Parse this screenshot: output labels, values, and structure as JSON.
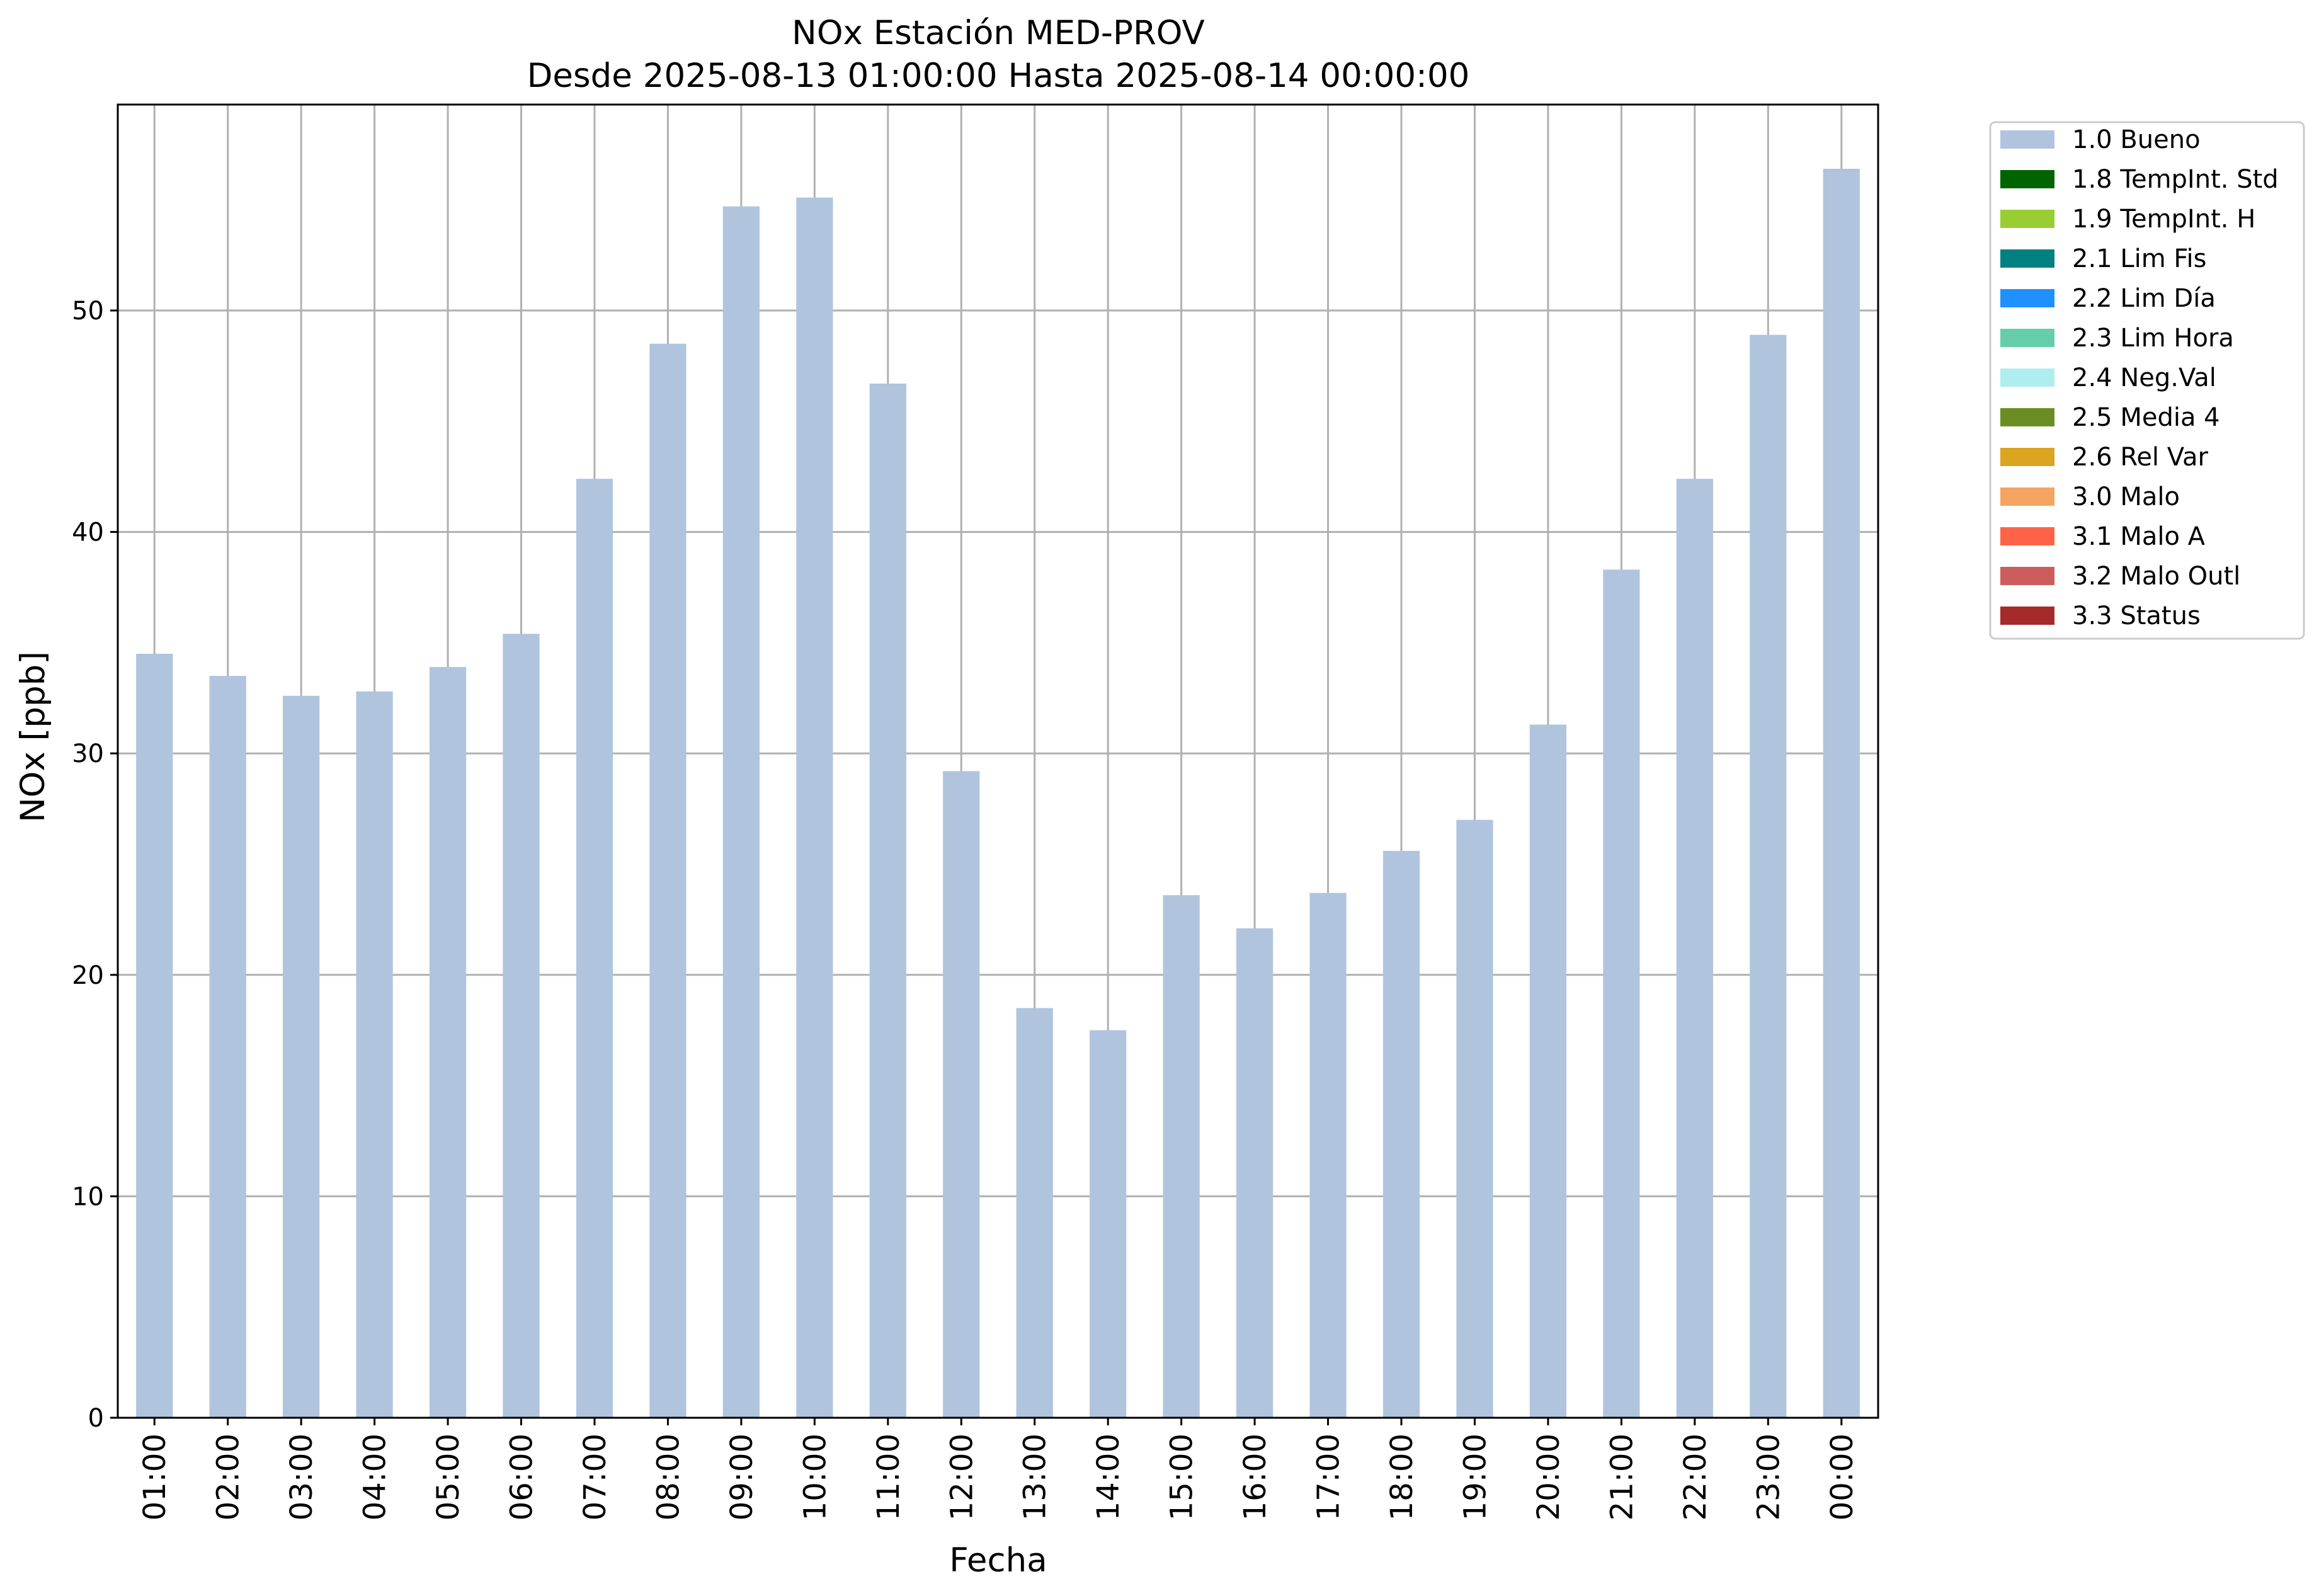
{
  "chart_data": {
    "type": "bar",
    "title": "NOx Estación MED-PROV",
    "subtitle": "Desde 2025-08-13 01:00:00 Hasta 2025-08-14 00:00:00",
    "xlabel": "Fecha",
    "ylabel": "NOx [ppb]",
    "ylim": [
      0,
      59.3
    ],
    "yticks": [
      0,
      10,
      20,
      30,
      40,
      50
    ],
    "grid": true,
    "legend_position": "outside-top-right",
    "categories": [
      "01:00",
      "02:00",
      "03:00",
      "04:00",
      "05:00",
      "06:00",
      "07:00",
      "08:00",
      "09:00",
      "10:00",
      "11:00",
      "12:00",
      "13:00",
      "14:00",
      "15:00",
      "16:00",
      "17:00",
      "18:00",
      "19:00",
      "20:00",
      "21:00",
      "22:00",
      "23:00",
      "00:00"
    ],
    "series": [
      {
        "name": "1.0 Bueno",
        "color": "#b0c4de",
        "values": [
          34.5,
          33.5,
          32.6,
          32.8,
          33.9,
          35.4,
          42.4,
          48.5,
          54.7,
          55.1,
          46.7,
          29.2,
          18.5,
          17.5,
          23.6,
          22.1,
          23.7,
          25.6,
          27.0,
          31.3,
          38.3,
          42.4,
          48.9,
          56.4
        ]
      }
    ],
    "legend": [
      {
        "label": "1.0 Bueno",
        "color": "#b0c4de"
      },
      {
        "label": "1.8 TempInt. Std",
        "color": "#006400"
      },
      {
        "label": "1.9 TempInt. H",
        "color": "#9acd32"
      },
      {
        "label": "2.1 Lim Fis",
        "color": "#008080"
      },
      {
        "label": "2.2 Lim Día",
        "color": "#1e90ff"
      },
      {
        "label": "2.3 Lim Hora",
        "color": "#66cdaa"
      },
      {
        "label": "2.4 Neg.Val",
        "color": "#afeeee"
      },
      {
        "label": "2.5 Media 4",
        "color": "#6b8e23"
      },
      {
        "label": "2.6 Rel Var",
        "color": "#daa520"
      },
      {
        "label": "3.0 Malo",
        "color": "#f4a460"
      },
      {
        "label": "3.1 Malo A",
        "color": "#ff6347"
      },
      {
        "label": "3.2 Malo Outl",
        "color": "#cd5c5c"
      },
      {
        "label": "3.3 Status",
        "color": "#a52a2a"
      }
    ]
  }
}
